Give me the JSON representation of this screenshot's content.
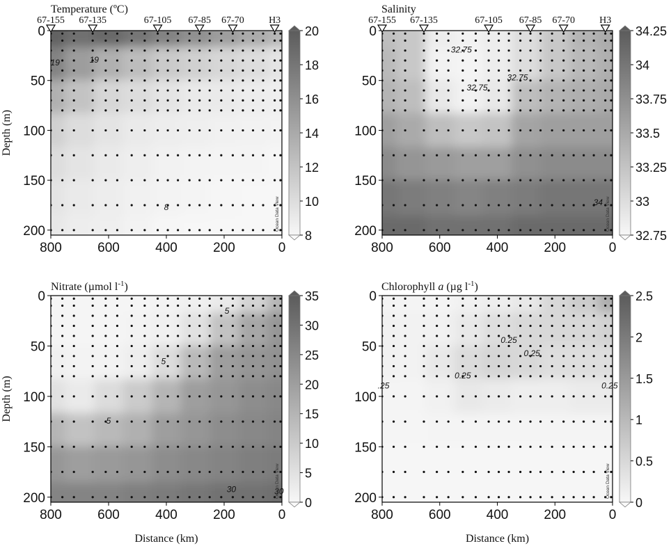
{
  "figure": {
    "xlabel": "Distance (km)",
    "ylabel": "Depth (m)",
    "watermark": "Ocean Data View",
    "x_ticks": [
      "800",
      "600",
      "400",
      "200",
      "0"
    ],
    "y_ticks": [
      "0",
      "50",
      "100",
      "150",
      "200"
    ]
  },
  "chart_data": [
    {
      "type": "heatmap",
      "title": "Temperature (ºC)",
      "xlabel": "",
      "ylabel": "Depth (m)",
      "xlim": [
        800,
        0
      ],
      "ylim": [
        205,
        0
      ],
      "colorbar": {
        "min": 8,
        "max": 20,
        "ticks": [
          "20",
          "18",
          "16",
          "14",
          "12",
          "10",
          "8"
        ]
      },
      "stations": [
        {
          "label": "67-155",
          "x": 800
        },
        {
          "label": "67-135",
          "x": 655
        },
        {
          "label": "67-105",
          "x": 430
        },
        {
          "label": "67-85",
          "x": 285
        },
        {
          "label": "67-70",
          "x": 170
        },
        {
          "label": "H3",
          "x": 25
        }
      ],
      "contour_labels": [
        {
          "text": "19",
          "x": 785,
          "y": 35
        },
        {
          "text": "19",
          "x": 650,
          "y": 32
        },
        {
          "text": "8",
          "x": 400,
          "y": 180
        }
      ],
      "field": [
        [
          19.5,
          18.5,
          19.0,
          18.0,
          17.0,
          16.0,
          15.0,
          14.0,
          13.0
        ],
        [
          17.0,
          15.0,
          13.5,
          12.5,
          11.5,
          11.0,
          10.5,
          10.0,
          9.5
        ],
        [
          13.5,
          12.0,
          10.5,
          10.0,
          9.5,
          9.0,
          9.0,
          8.8,
          8.6
        ],
        [
          11.0,
          10.0,
          9.5,
          9.0,
          8.8,
          8.6,
          8.5,
          8.4,
          8.3
        ],
        [
          10.0,
          9.5,
          9.0,
          8.7,
          8.4,
          8.3,
          8.2,
          8.2,
          8.1
        ],
        [
          9.5,
          9.0,
          8.8,
          8.5,
          8.3,
          8.2,
          8.1,
          8.0,
          8.0
        ],
        [
          9.2,
          8.8,
          8.6,
          8.3,
          8.1,
          8.0,
          8.0,
          8.0,
          8.0
        ]
      ]
    },
    {
      "type": "heatmap",
      "title": "Salinity",
      "xlabel": "",
      "ylabel": "",
      "xlim": [
        800,
        0
      ],
      "ylim": [
        205,
        0
      ],
      "colorbar": {
        "min": 32.75,
        "max": 34.25,
        "ticks": [
          "34.25",
          "34",
          "33.75",
          "33.5",
          "33.25",
          "33",
          "32.75"
        ]
      },
      "stations": [
        {
          "label": "67-155",
          "x": 800
        },
        {
          "label": "67-135",
          "x": 655
        },
        {
          "label": "67-105",
          "x": 430
        },
        {
          "label": "67-85",
          "x": 285
        },
        {
          "label": "67-70",
          "x": 170
        },
        {
          "label": "H3",
          "x": 25
        }
      ],
      "contour_labels": [
        {
          "text": "32.75",
          "x": 525,
          "y": 22
        },
        {
          "text": "32.75",
          "x": 470,
          "y": 60
        },
        {
          "text": "32.75",
          "x": 330,
          "y": 50
        },
        {
          "text": "34",
          "x": 50,
          "y": 175
        }
      ],
      "field": [
        [
          33.3,
          33.2,
          32.85,
          32.8,
          32.85,
          33.0,
          33.2,
          33.4,
          33.5
        ],
        [
          33.35,
          33.2,
          32.8,
          32.78,
          32.85,
          33.0,
          33.2,
          33.35,
          33.45
        ],
        [
          33.4,
          33.3,
          32.9,
          32.8,
          32.9,
          33.3,
          33.4,
          33.45,
          33.5
        ],
        [
          33.6,
          33.5,
          33.3,
          33.2,
          33.25,
          33.55,
          33.6,
          33.6,
          33.6
        ],
        [
          33.8,
          33.7,
          33.65,
          33.6,
          33.6,
          33.75,
          33.8,
          33.8,
          33.8
        ],
        [
          34.0,
          33.95,
          33.9,
          33.85,
          33.9,
          33.95,
          34.0,
          34.0,
          34.0
        ],
        [
          34.1,
          34.1,
          34.05,
          34.05,
          34.05,
          34.1,
          34.1,
          34.1,
          34.1
        ]
      ]
    },
    {
      "type": "heatmap",
      "title": "Nitrate (µmol l-1)",
      "title_main": "Nitrate (µmol l",
      "title_sup": "-1",
      "title_end": ")",
      "xlabel": "Distance (km)",
      "ylabel": "Depth (m)",
      "xlim": [
        800,
        0
      ],
      "ylim": [
        205,
        0
      ],
      "colorbar": {
        "min": 0,
        "max": 35,
        "ticks": [
          "35",
          "30",
          "25",
          "20",
          "15",
          "10",
          "5",
          "0"
        ]
      },
      "contour_labels": [
        {
          "text": "5",
          "x": 190,
          "y": 18
        },
        {
          "text": "5",
          "x": 410,
          "y": 68
        },
        {
          "text": "5",
          "x": 600,
          "y": 127
        },
        {
          "text": "30",
          "x": 175,
          "y": 195
        },
        {
          "text": "30",
          "x": 10,
          "y": 197
        }
      ],
      "field": [
        [
          0.5,
          0.5,
          0.5,
          0.5,
          0.8,
          1.5,
          3.0,
          8.0,
          15.0
        ],
        [
          0.5,
          0.5,
          0.5,
          0.8,
          1.5,
          5.0,
          12.0,
          18.0,
          22.0
        ],
        [
          1.5,
          1.0,
          1.0,
          2.0,
          6.0,
          14.0,
          20.0,
          22.0,
          23.0
        ],
        [
          5.0,
          3.0,
          6.0,
          10.0,
          15.0,
          20.0,
          22.0,
          24.0,
          25.0
        ],
        [
          15.0,
          12.0,
          14.0,
          16.0,
          20.0,
          22.0,
          24.0,
          25.0,
          26.0
        ],
        [
          22.0,
          20.0,
          21.0,
          22.0,
          24.0,
          25.0,
          26.0,
          27.0,
          28.0
        ],
        [
          26.0,
          26.0,
          26.0,
          27.0,
          28.0,
          29.0,
          30.0,
          30.0,
          31.0
        ]
      ]
    },
    {
      "type": "heatmap",
      "title": "Chlorophyll a (µg l-1)",
      "title_main": "Chlorophyll ",
      "title_italic": "a",
      "title_unit": " (µg l",
      "title_sup": "-1",
      "title_end": ")",
      "xlabel": "Distance (km)",
      "ylabel": "",
      "xlim": [
        800,
        0
      ],
      "ylim": [
        205,
        0
      ],
      "colorbar": {
        "min": 0,
        "max": 2.5,
        "ticks": [
          "2.5",
          "2",
          "1.5",
          "1",
          "0.5",
          "0"
        ]
      },
      "contour_labels": [
        {
          "text": "0.25",
          "x": 520,
          "y": 82
        },
        {
          "text": "0.25",
          "x": 280,
          "y": 60
        },
        {
          "text": "0.25",
          "x": 360,
          "y": 47
        },
        {
          "text": "0.25",
          "x": 10,
          "y": 92
        },
        {
          "text": ".25",
          "x": 795,
          "y": 92
        }
      ],
      "field": [
        [
          0.05,
          0.05,
          0.05,
          0.1,
          0.15,
          0.25,
          0.5,
          0.7,
          1.2
        ],
        [
          0.1,
          0.08,
          0.1,
          0.25,
          0.4,
          0.5,
          0.5,
          0.5,
          0.6
        ],
        [
          0.1,
          0.08,
          0.25,
          0.45,
          0.55,
          0.5,
          0.4,
          0.4,
          0.4
        ],
        [
          0.05,
          0.05,
          0.1,
          0.25,
          0.2,
          0.15,
          0.15,
          0.2,
          0.2
        ],
        [
          0.03,
          0.03,
          0.05,
          0.05,
          0.05,
          0.05,
          0.05,
          0.05,
          0.05
        ],
        [
          0.02,
          0.02,
          0.02,
          0.02,
          0.02,
          0.02,
          0.02,
          0.02,
          0.02
        ],
        [
          0.02,
          0.02,
          0.02,
          0.02,
          0.02,
          0.02,
          0.02,
          0.02,
          0.02
        ]
      ]
    }
  ]
}
